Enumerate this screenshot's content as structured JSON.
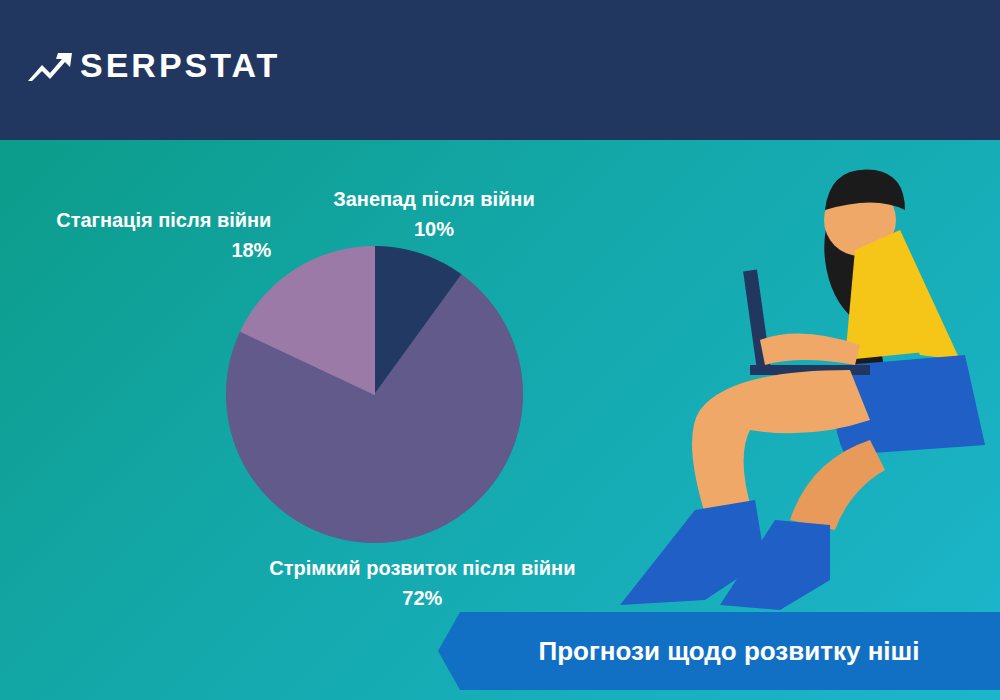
{
  "header": {
    "logo": "SERPSTAT"
  },
  "chart_data": {
    "type": "pie",
    "title": "Прогнози щодо розвитку ніші",
    "categories": [
      "Занепад після війни",
      "Стрімкий розвиток після війни",
      "Стагнація після війни"
    ],
    "values": [
      10,
      72,
      18
    ],
    "value_labels": [
      "10%",
      "72%",
      "18%"
    ],
    "colors": [
      "#223a63",
      "#615a8a",
      "#9b7aa8"
    ],
    "data_labels": true
  }
}
